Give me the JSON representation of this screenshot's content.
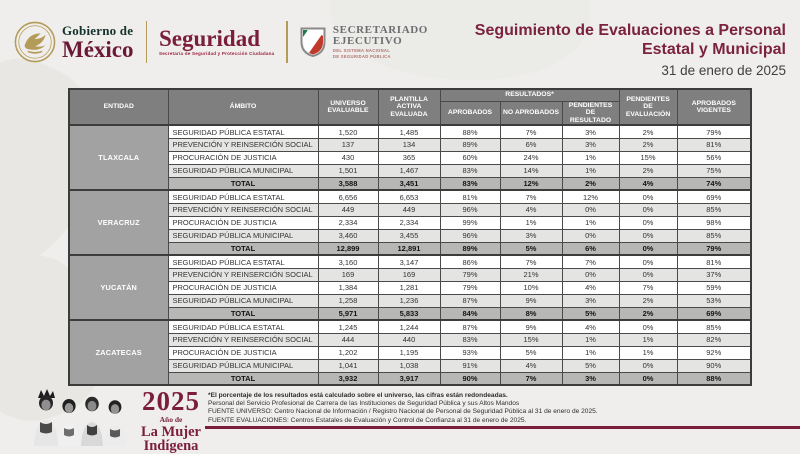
{
  "header": {
    "gobierno_line1": "Gobierno de",
    "gobierno_line2": "México",
    "seguridad_title": "Seguridad",
    "seguridad_subtitle": "Secretaría de Seguridad y Protección Ciudadana",
    "secretariado_line1": "SECRETARIADO",
    "secretariado_line2": "EJECUTIVO",
    "secretariado_subtitle1": "DEL SISTEMA NACIONAL",
    "secretariado_subtitle2": "DE SEGURIDAD PÚBLICA",
    "title_line1": "Seguimiento de Evaluaciones a Personal",
    "title_line2": "Estatal y Municipal",
    "date": "31 de enero de 2025"
  },
  "table": {
    "headers": {
      "entidad": "ENTIDAD",
      "ambito": "ÁMBITO",
      "universo": "UNIVERSO EVALUABLE",
      "plantilla": "PLANTILLA ACTIVA EVALUADA",
      "resultados_group": "RESULTADOS*",
      "aprobados": "APROBADOS",
      "no_aprobados": "NO APROBADOS",
      "pendientes_resultado": "PENDIENTES DE RESULTADO",
      "pendientes_evaluacion": "PENDIENTES DE EVALUACIÓN",
      "aprobados_vigentes": "APROBADOS VIGENTES"
    },
    "total_label": "TOTAL",
    "groups": [
      {
        "entidad": "TLAXCALA",
        "rows": [
          {
            "ambito": "SEGURIDAD PÚBLICA ESTATAL",
            "universo": "1,520",
            "plantilla": "1,485",
            "aprobados": "88%",
            "no_aprobados": "7%",
            "pend_resultado": "3%",
            "pend_evaluacion": "2%",
            "aprobados_vigentes": "79%"
          },
          {
            "ambito": "PREVENCIÓN Y REINSERCIÓN SOCIAL",
            "universo": "137",
            "plantilla": "134",
            "aprobados": "89%",
            "no_aprobados": "6%",
            "pend_resultado": "3%",
            "pend_evaluacion": "2%",
            "aprobados_vigentes": "81%"
          },
          {
            "ambito": "PROCURACIÓN DE JUSTICIA",
            "universo": "430",
            "plantilla": "365",
            "aprobados": "60%",
            "no_aprobados": "24%",
            "pend_resultado": "1%",
            "pend_evaluacion": "15%",
            "aprobados_vigentes": "56%"
          },
          {
            "ambito": "SEGURIDAD PÚBLICA MUNICIPAL",
            "universo": "1,501",
            "plantilla": "1,467",
            "aprobados": "83%",
            "no_aprobados": "14%",
            "pend_resultado": "1%",
            "pend_evaluacion": "2%",
            "aprobados_vigentes": "75%"
          }
        ],
        "total": {
          "universo": "3,588",
          "plantilla": "3,451",
          "aprobados": "83%",
          "no_aprobados": "12%",
          "pend_resultado": "2%",
          "pend_evaluacion": "4%",
          "aprobados_vigentes": "74%"
        }
      },
      {
        "entidad": "VERACRUZ",
        "rows": [
          {
            "ambito": "SEGURIDAD PÚBLICA ESTATAL",
            "universo": "6,656",
            "plantilla": "6,653",
            "aprobados": "81%",
            "no_aprobados": "7%",
            "pend_resultado": "12%",
            "pend_evaluacion": "0%",
            "aprobados_vigentes": "69%"
          },
          {
            "ambito": "PREVENCIÓN Y REINSERCIÓN SOCIAL",
            "universo": "449",
            "plantilla": "449",
            "aprobados": "96%",
            "no_aprobados": "4%",
            "pend_resultado": "0%",
            "pend_evaluacion": "0%",
            "aprobados_vigentes": "85%"
          },
          {
            "ambito": "PROCURACIÓN DE JUSTICIA",
            "universo": "2,334",
            "plantilla": "2,334",
            "aprobados": "99%",
            "no_aprobados": "1%",
            "pend_resultado": "1%",
            "pend_evaluacion": "0%",
            "aprobados_vigentes": "98%"
          },
          {
            "ambito": "SEGURIDAD PÚBLICA MUNICIPAL",
            "universo": "3,460",
            "plantilla": "3,455",
            "aprobados": "96%",
            "no_aprobados": "3%",
            "pend_resultado": "0%",
            "pend_evaluacion": "0%",
            "aprobados_vigentes": "85%"
          }
        ],
        "total": {
          "universo": "12,899",
          "plantilla": "12,891",
          "aprobados": "89%",
          "no_aprobados": "5%",
          "pend_resultado": "6%",
          "pend_evaluacion": "0%",
          "aprobados_vigentes": "79%"
        }
      },
      {
        "entidad": "YUCATÁN",
        "rows": [
          {
            "ambito": "SEGURIDAD PÚBLICA ESTATAL",
            "universo": "3,160",
            "plantilla": "3,147",
            "aprobados": "86%",
            "no_aprobados": "7%",
            "pend_resultado": "7%",
            "pend_evaluacion": "0%",
            "aprobados_vigentes": "81%"
          },
          {
            "ambito": "PREVENCIÓN Y REINSERCIÓN SOCIAL",
            "universo": "169",
            "plantilla": "169",
            "aprobados": "79%",
            "no_aprobados": "21%",
            "pend_resultado": "0%",
            "pend_evaluacion": "0%",
            "aprobados_vigentes": "37%"
          },
          {
            "ambito": "PROCURACIÓN DE JUSTICIA",
            "universo": "1,384",
            "plantilla": "1,281",
            "aprobados": "79%",
            "no_aprobados": "10%",
            "pend_resultado": "4%",
            "pend_evaluacion": "7%",
            "aprobados_vigentes": "59%"
          },
          {
            "ambito": "SEGURIDAD PÚBLICA MUNICIPAL",
            "universo": "1,258",
            "plantilla": "1,236",
            "aprobados": "87%",
            "no_aprobados": "9%",
            "pend_resultado": "3%",
            "pend_evaluacion": "2%",
            "aprobados_vigentes": "53%"
          }
        ],
        "total": {
          "universo": "5,971",
          "plantilla": "5,833",
          "aprobados": "84%",
          "no_aprobados": "8%",
          "pend_resultado": "5%",
          "pend_evaluacion": "2%",
          "aprobados_vigentes": "69%"
        }
      },
      {
        "entidad": "ZACATECAS",
        "rows": [
          {
            "ambito": "SEGURIDAD PÚBLICA ESTATAL",
            "universo": "1,245",
            "plantilla": "1,244",
            "aprobados": "87%",
            "no_aprobados": "9%",
            "pend_resultado": "4%",
            "pend_evaluacion": "0%",
            "aprobados_vigentes": "85%"
          },
          {
            "ambito": "PREVENCIÓN Y REINSERCIÓN SOCIAL",
            "universo": "444",
            "plantilla": "440",
            "aprobados": "83%",
            "no_aprobados": "15%",
            "pend_resultado": "1%",
            "pend_evaluacion": "1%",
            "aprobados_vigentes": "82%"
          },
          {
            "ambito": "PROCURACIÓN DE JUSTICIA",
            "universo": "1,202",
            "plantilla": "1,195",
            "aprobados": "93%",
            "no_aprobados": "5%",
            "pend_resultado": "1%",
            "pend_evaluacion": "1%",
            "aprobados_vigentes": "92%"
          },
          {
            "ambito": "SEGURIDAD PÚBLICA MUNICIPAL",
            "universo": "1,041",
            "plantilla": "1,038",
            "aprobados": "91%",
            "no_aprobados": "4%",
            "pend_resultado": "5%",
            "pend_evaluacion": "0%",
            "aprobados_vigentes": "90%"
          }
        ],
        "total": {
          "universo": "3,932",
          "plantilla": "3,917",
          "aprobados": "90%",
          "no_aprobados": "7%",
          "pend_resultado": "3%",
          "pend_evaluacion": "0%",
          "aprobados_vigentes": "88%"
        }
      }
    ]
  },
  "footer": {
    "year": "2025",
    "year_sub": "Año de",
    "year_line2": "La Mujer",
    "year_line3": "Indígena",
    "footnotes": [
      "*El porcentaje de los resultados está calculado sobre el universo, las cifras están redondeadas.",
      "Personal del Servicio Profesional de Carrera de las Instituciones de Seguridad Pública y sus Altos Mandos",
      "FUENTE UNIVERSO: Centro Nacional de Información / Registro Nacional de Personal de Seguridad Pública al 31 de enero de 2025.",
      "FUENTE EVALUACIONES: Centros Estatales de Evaluación y Control de Confianza al 31 de enero de 2025."
    ]
  },
  "colors": {
    "brand_maroon": "#7b1e3c",
    "gold": "#b49b57",
    "table_header_gray": "#7f7f7f",
    "entidad_gray": "#a2a2a2",
    "total_row_gray": "#b7b7b5",
    "alt_row_gray": "#e4e4e2",
    "background": "#efeeec"
  }
}
